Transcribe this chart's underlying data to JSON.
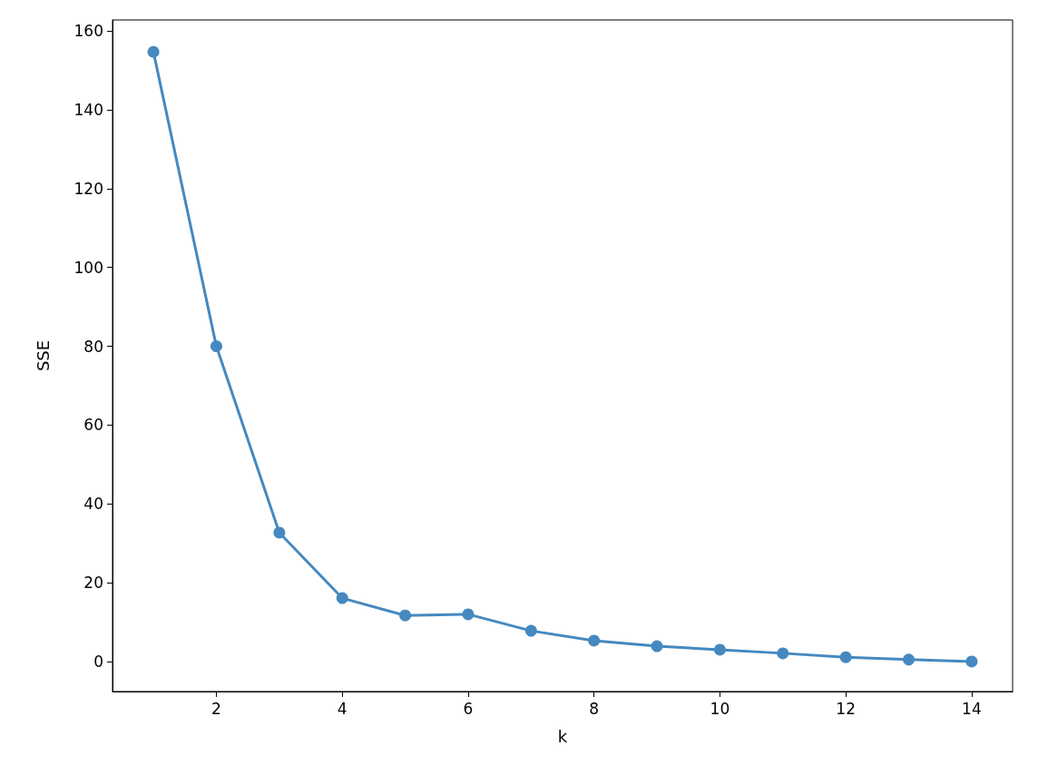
{
  "chart_data": {
    "type": "line",
    "xlabel": "k",
    "ylabel": "SSE",
    "x": [
      1,
      2,
      3,
      4,
      5,
      6,
      7,
      8,
      9,
      10,
      11,
      12,
      13,
      14
    ],
    "series": [
      {
        "color": "#4589c0",
        "values": [
          154.7,
          80,
          32.7,
          16.1,
          11.7,
          12.0,
          7.8,
          5.3,
          3.9,
          3.0,
          2.1,
          1.1,
          0.5,
          0
        ]
      }
    ],
    "xlim": [
      0.35,
      14.65
    ],
    "xticks": [
      2,
      4,
      6,
      8,
      10,
      12,
      14
    ],
    "ylim": [
      -7.6,
      162.8
    ],
    "yticks": [
      0,
      20,
      40,
      60,
      80,
      100,
      120,
      140,
      160
    ],
    "grid": false,
    "marker": "circle",
    "line_style": "solid"
  }
}
